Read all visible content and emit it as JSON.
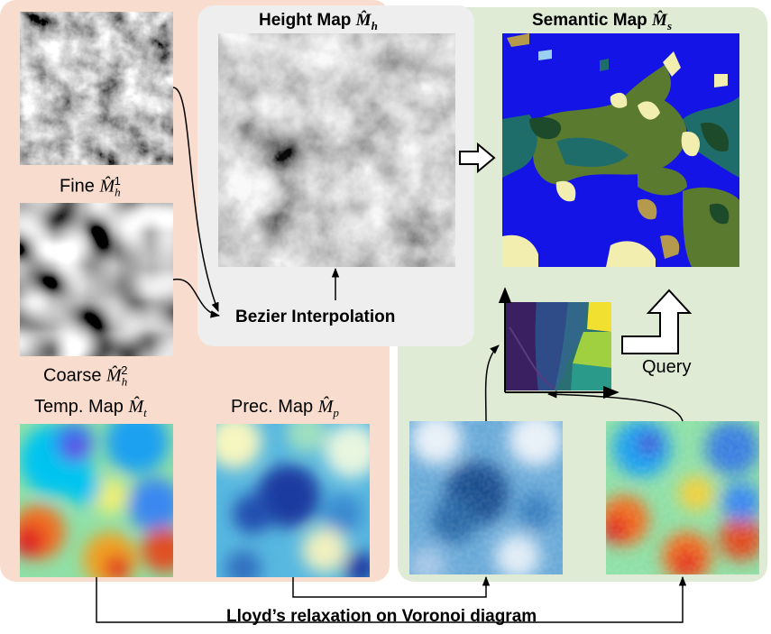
{
  "titles": {
    "height_map": "Height Map",
    "height_map_symbol": "M̂",
    "height_map_sub": "h",
    "semantic_map": "Semantic Map",
    "semantic_map_symbol": "M̂",
    "semantic_map_sub": "s"
  },
  "labels": {
    "fine": "Fine",
    "fine_symbol": "M̂",
    "fine_sub": "h",
    "fine_sup": "1",
    "coarse": "Coarse",
    "coarse_symbol": "M̂",
    "coarse_sub": "h",
    "coarse_sup": "2",
    "temp_map": "Temp. Map",
    "temp_symbol": "M̂",
    "temp_sub": "t",
    "prec_map": "Prec. Map",
    "prec_symbol": "M̂",
    "prec_sub": "p",
    "bezier": "Bezier Interpolation",
    "query": "Query",
    "lloyd": "Lloyd’s relaxation on Voronoi diagram"
  },
  "colors": {
    "left_panel": "#f8dccd",
    "right_panel": "#dfebd4",
    "center_panel": "#eeeeee",
    "ocean": "#1414e6",
    "biome_green": "#5a7a30",
    "biome_teal": "#1f6d6a",
    "biome_sand": "#f2eeb0",
    "biome_khaki": "#b59a4e"
  },
  "icons": {
    "right_arrow": "hollow-right-arrow-icon",
    "up_arrow": "hollow-up-arrow-icon"
  }
}
